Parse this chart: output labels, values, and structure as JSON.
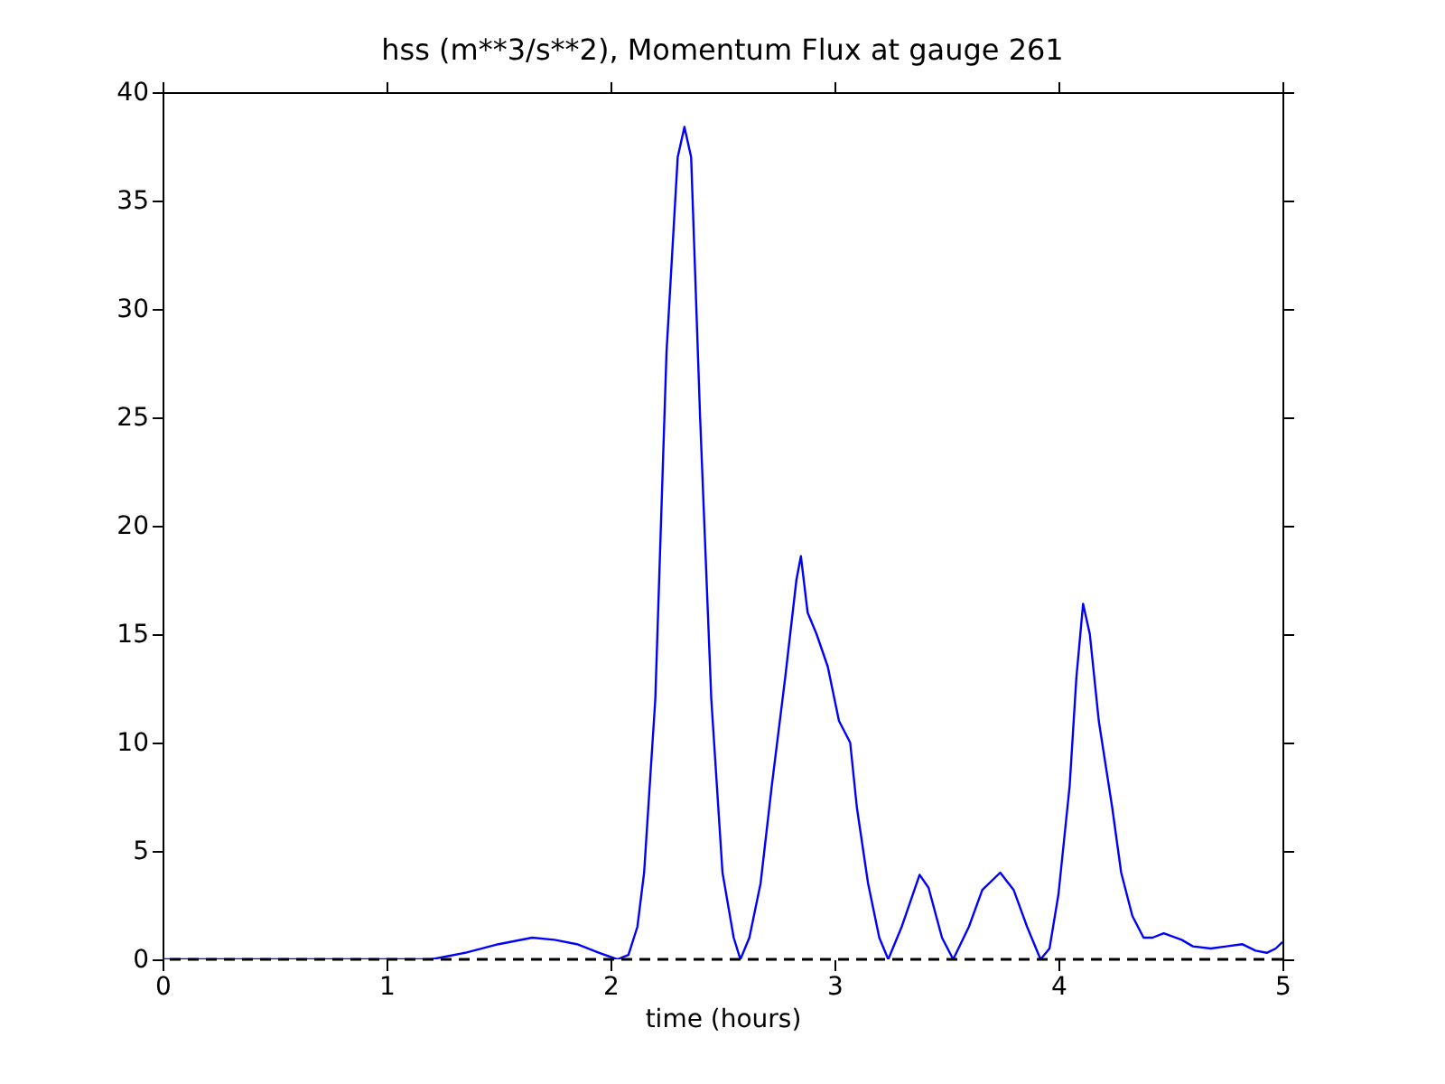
{
  "chart_data": {
    "type": "line",
    "title": "hss (m**3/s**2), Momentum Flux at gauge 261",
    "xlabel": "time (hours)",
    "x": [
      0,
      0.5,
      1.0,
      1.2,
      1.35,
      1.5,
      1.65,
      1.75,
      1.85,
      1.95,
      2.03,
      2.08,
      2.12,
      2.15,
      2.2,
      2.25,
      2.3,
      2.33,
      2.36,
      2.4,
      2.45,
      2.5,
      2.55,
      2.58,
      2.62,
      2.67,
      2.72,
      2.78,
      2.83,
      2.85,
      2.88,
      2.92,
      2.97,
      3.02,
      3.07,
      3.1,
      3.15,
      3.2,
      3.24,
      3.3,
      3.38,
      3.42,
      3.48,
      3.53,
      3.6,
      3.66,
      3.74,
      3.8,
      3.86,
      3.92,
      3.96,
      4.0,
      4.05,
      4.08,
      4.11,
      4.14,
      4.18,
      4.24,
      4.28,
      4.33,
      4.38,
      4.42,
      4.47,
      4.55,
      4.6,
      4.68,
      4.75,
      4.82,
      4.88,
      4.93,
      4.97,
      5.0
    ],
    "series": [
      {
        "color": "#0000ff",
        "values": [
          0,
          0,
          0,
          0,
          0.3,
          0.7,
          1.0,
          0.9,
          0.7,
          0.3,
          0,
          0.2,
          1.5,
          4,
          12,
          28,
          37,
          38.4,
          37,
          25,
          12,
          4,
          1,
          0,
          1,
          3.5,
          8,
          13,
          17.5,
          18.6,
          16,
          15,
          13.5,
          11,
          10,
          7,
          3.5,
          1,
          0,
          1.5,
          3.9,
          3.3,
          1,
          0,
          1.5,
          3.2,
          4.0,
          3.2,
          1.5,
          0,
          0.5,
          3,
          8,
          13,
          16.4,
          15,
          11,
          7,
          4,
          2,
          1,
          1,
          1.2,
          0.9,
          0.6,
          0.5,
          0.6,
          0.7,
          0.4,
          0.3,
          0.5,
          0.8
        ]
      }
    ],
    "xlim": [
      0,
      5
    ],
    "xticks": [
      0,
      1,
      2,
      3,
      4,
      5
    ],
    "ylim": [
      0,
      40
    ],
    "yticks": [
      0,
      5,
      10,
      15,
      20,
      25,
      30,
      35,
      40
    ],
    "ref_lines": [
      {
        "axis": "y",
        "value": 0,
        "color": "#000000",
        "line_style": "dashed"
      }
    ],
    "grid": false,
    "line_style": "solid",
    "marker": "none"
  }
}
